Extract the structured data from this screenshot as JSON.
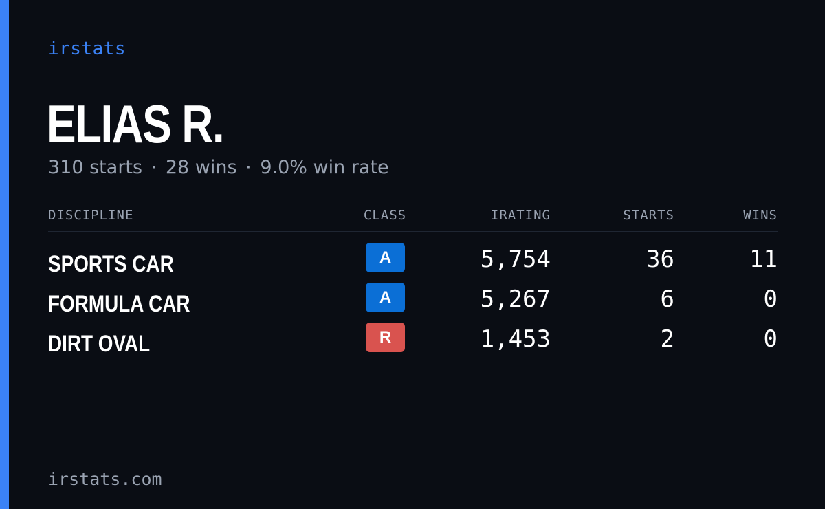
{
  "brand": "irstats",
  "driver": {
    "name": "ELIAS R.",
    "summary": {
      "starts": "310 starts",
      "wins": "28 wins",
      "win_rate": "9.0% win rate",
      "separator": "·"
    }
  },
  "table": {
    "headers": {
      "discipline": "DISCIPLINE",
      "class": "CLASS",
      "irating": "IRATING",
      "starts": "STARTS",
      "wins": "WINS"
    },
    "rows": [
      {
        "discipline": "SPORTS CAR",
        "class": "A",
        "class_color": "#0b6fd6",
        "irating": "5,754",
        "starts": "36",
        "wins": "11"
      },
      {
        "discipline": "FORMULA CAR",
        "class": "A",
        "class_color": "#0b6fd6",
        "irating": "5,267",
        "starts": "6",
        "wins": "0"
      },
      {
        "discipline": "DIRT OVAL",
        "class": "R",
        "class_color": "#d9534f",
        "irating": "1,453",
        "starts": "2",
        "wins": "0"
      }
    ]
  },
  "footer": {
    "url": "irstats.com"
  },
  "colors": {
    "accent": "#3b82f6",
    "background": "#0a0d14",
    "muted": "#9aa3b2"
  }
}
